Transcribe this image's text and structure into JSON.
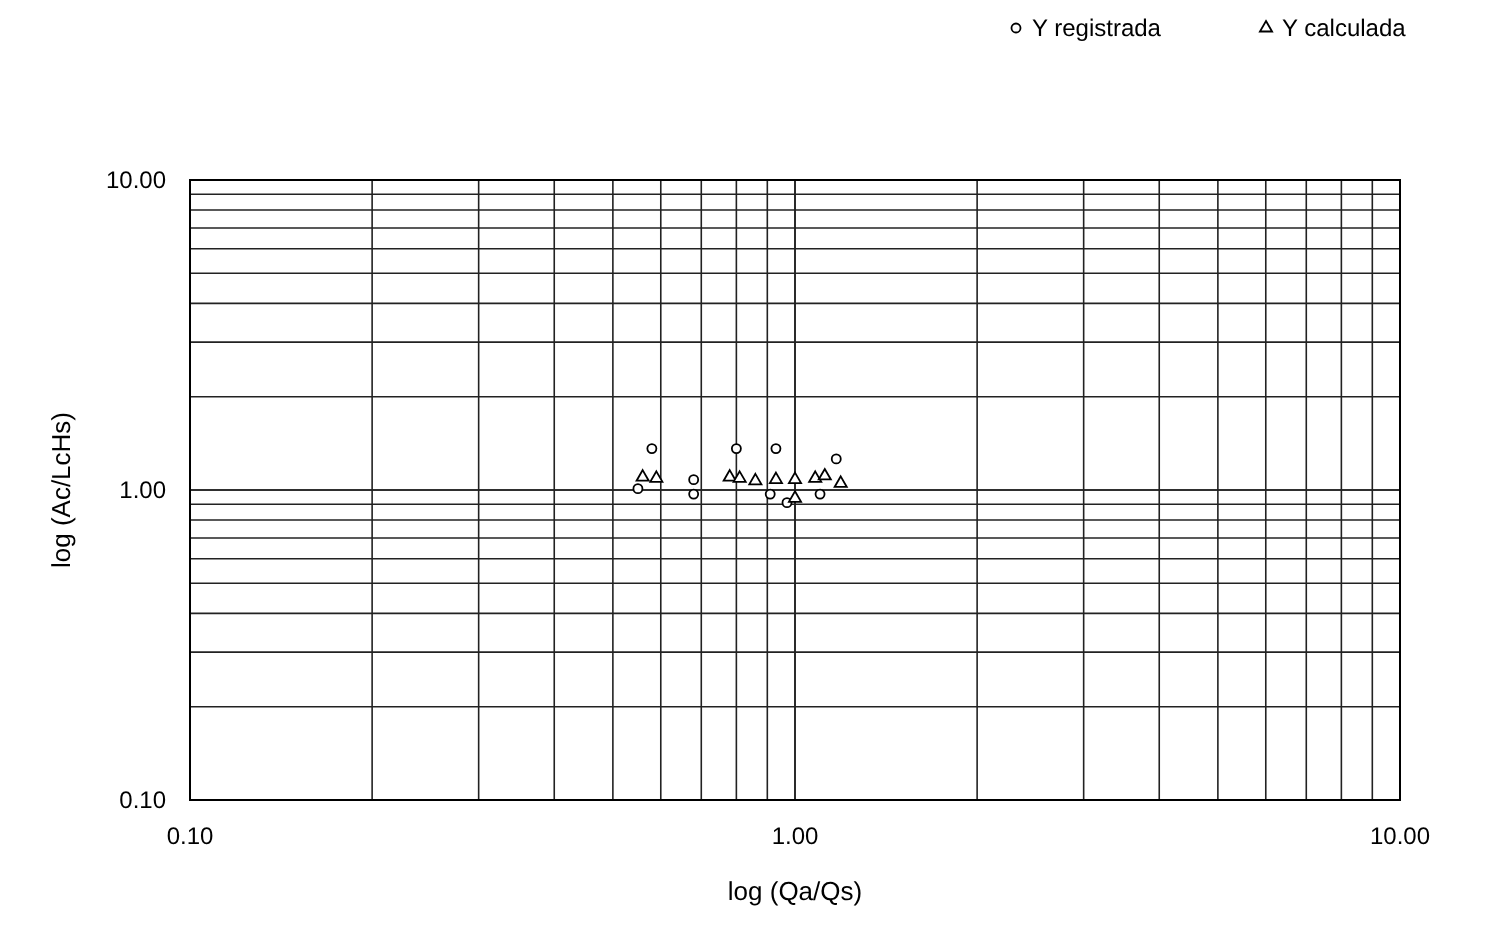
{
  "chart_data": {
    "type": "scatter",
    "xlabel": "log (Qa/Qs)",
    "ylabel": "log (Ac/LcHs)",
    "log": "xy",
    "grid": true,
    "legend": "top right",
    "xlim": [
      0.1,
      10
    ],
    "ylim": [
      0.1,
      10
    ],
    "xticks": [
      {
        "value": 0.1,
        "label": "0.10"
      },
      {
        "value": 1,
        "label": "1.00"
      },
      {
        "value": 10,
        "label": "10.00"
      }
    ],
    "yticks": [
      {
        "value": 0.1,
        "label": "0.10"
      },
      {
        "value": 1,
        "label": "1.00"
      },
      {
        "value": 10,
        "label": "10.00"
      }
    ],
    "series": [
      {
        "name": "Y registrada",
        "color": "#000000",
        "marker": "circle",
        "x": [
          0.58,
          0.55,
          0.68,
          0.68,
          0.8,
          0.93,
          1.17,
          0.91,
          0.97,
          1.1
        ],
        "values": [
          1.36,
          1.01,
          0.97,
          1.08,
          1.36,
          1.36,
          1.26,
          0.97,
          0.91,
          0.97
        ]
      },
      {
        "name": "Y calculada",
        "color": "#000000",
        "marker": "triangle",
        "x": [
          0.56,
          0.59,
          0.78,
          0.81,
          0.86,
          0.93,
          1.0,
          1.08,
          1.12,
          1.19,
          1.0
        ],
        "values": [
          1.1,
          1.09,
          1.1,
          1.09,
          1.07,
          1.08,
          1.08,
          1.09,
          1.11,
          1.05,
          0.94
        ]
      }
    ]
  }
}
